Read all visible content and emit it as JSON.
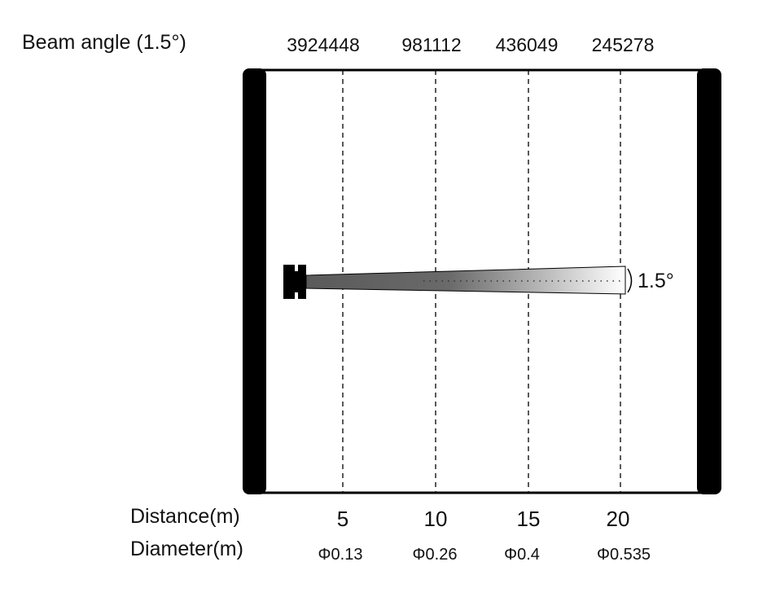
{
  "title": "Beam angle (1.5°)",
  "illuminance_values": [
    "3924448",
    "981112",
    "436049",
    "245278"
  ],
  "row_labels": {
    "distance": "Distance(m)",
    "diameter": "Diameter(m)"
  },
  "distances": [
    "5",
    "10",
    "15",
    "20"
  ],
  "diameters": [
    "Φ0.13",
    "Φ0.26",
    "Φ0.4",
    "Φ0.535"
  ],
  "beam_angle_label": "1.5°",
  "colors": {
    "frame": "#000000",
    "beam_start": "#5a5a5a",
    "beam_end": "#ffffff"
  }
}
